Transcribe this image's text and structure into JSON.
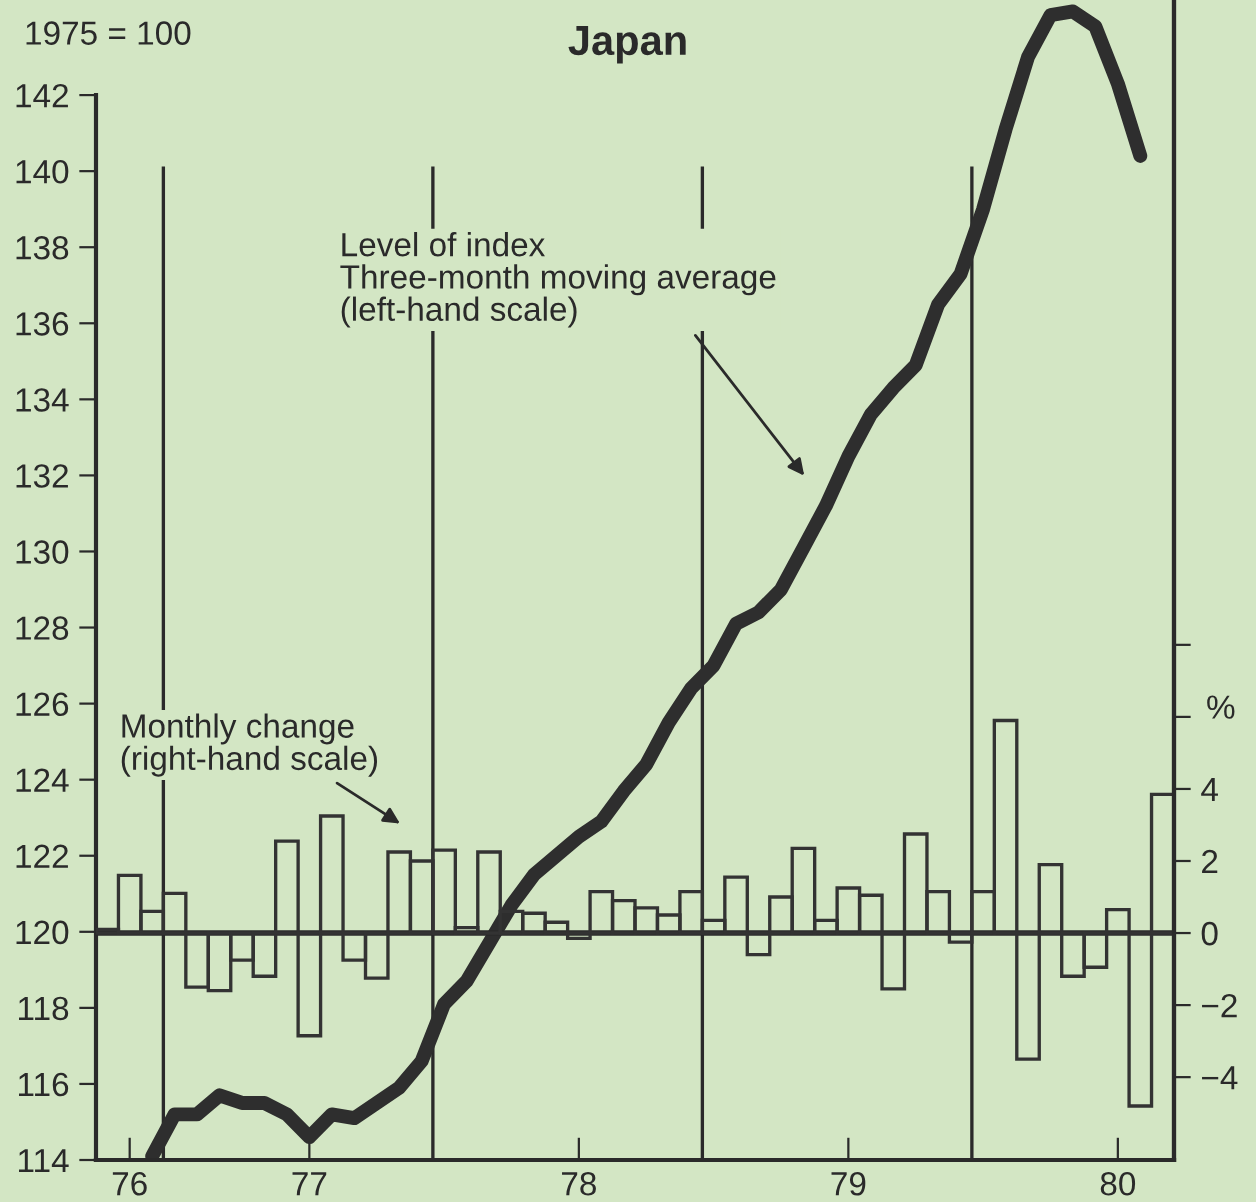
{
  "chart_data": {
    "type": "bar",
    "title": "Japan",
    "ylabel": "1975 = 100",
    "y2label": "%",
    "categories": [
      null,
      "76",
      null,
      null,
      null,
      null,
      null,
      null,
      null,
      "77",
      null,
      null,
      null,
      null,
      null,
      null,
      null,
      null,
      null,
      null,
      null,
      "78",
      null,
      null,
      null,
      null,
      null,
      null,
      null,
      null,
      null,
      null,
      null,
      "79",
      null,
      null,
      null,
      null,
      null,
      null,
      null,
      null,
      null,
      null,
      null,
      "80",
      null,
      null
    ],
    "series": [
      {
        "axis": "y2",
        "color": "#333333",
        "values": [
          0.1,
          1.6,
          0.6,
          1.1,
          -1.5,
          -1.6,
          -0.75,
          -1.2,
          2.55,
          -2.85,
          3.25,
          -0.75,
          -1.25,
          2.25,
          2.0,
          2.3,
          0.15,
          2.25,
          0.6,
          0.55,
          0.3,
          -0.15,
          1.15,
          0.9,
          0.7,
          0.5,
          1.15,
          0.35,
          1.55,
          -0.6,
          1.0,
          2.35,
          0.35,
          1.25,
          1.05,
          -1.55,
          2.75,
          1.15,
          -0.25,
          1.15,
          5.9,
          -3.5,
          1.9,
          -1.2,
          -0.95,
          0.65,
          -4.8,
          3.85
        ]
      },
      {
        "type": "line",
        "color": "#2e2e2e",
        "line_style": "solid",
        "values": [
          null,
          null,
          114.1,
          115.2,
          115.2,
          115.7,
          115.5,
          115.5,
          115.2,
          114.6,
          115.2,
          115.1,
          115.5,
          115.9,
          116.6,
          118.1,
          118.7,
          119.7,
          120.7,
          121.5,
          122.0,
          122.5,
          122.9,
          123.7,
          124.4,
          125.5,
          126.4,
          127.0,
          128.1,
          128.4,
          129.0,
          130.1,
          131.2,
          132.5,
          133.6,
          134.3,
          134.9,
          136.5,
          137.3,
          139.0,
          141.1,
          143.0,
          144.1,
          144.2,
          143.8,
          142.3,
          140.4,
          null
        ]
      }
    ],
    "ylim": [
      114,
      144.5
    ],
    "yticks": [
      114,
      116,
      118,
      120,
      122,
      124,
      126,
      128,
      130,
      132,
      134,
      136,
      138,
      140,
      142
    ],
    "y2lim": [
      -6.3,
      25.9
    ],
    "y2ticks": [
      {
        "value": -4,
        "label": "−4"
      },
      {
        "value": -2,
        "label": "−2"
      },
      0,
      2,
      4,
      {
        "value": 6,
        "label": null
      },
      {
        "value": 8,
        "label": null
      }
    ],
    "ref_lines": [
      {
        "axis": "y2",
        "value": 0
      }
    ],
    "annotations": [
      "Level of index\nThree-month moving average\n(left-hand scale)",
      "Monthly change\n(right-hand scale)"
    ],
    "grid": false,
    "legend": false
  }
}
